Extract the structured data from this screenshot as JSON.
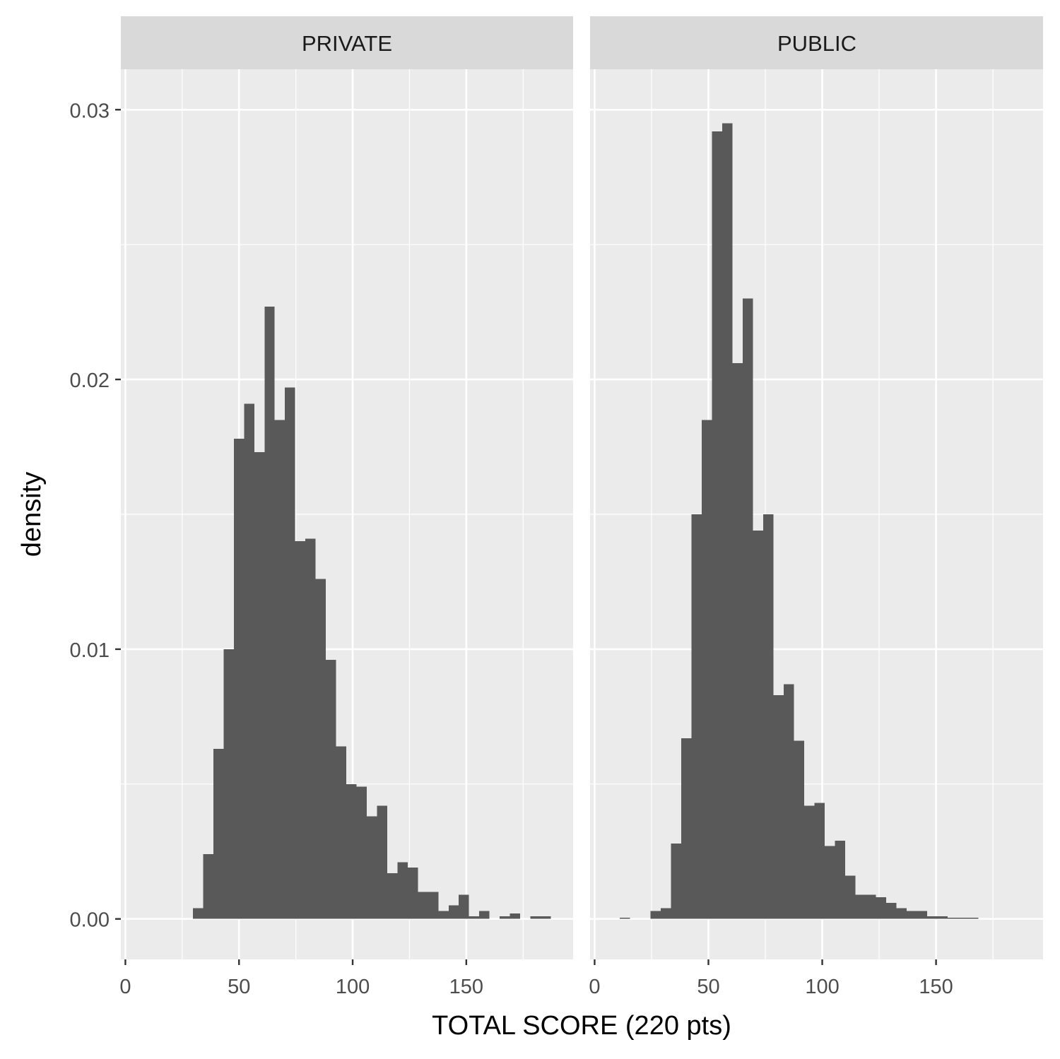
{
  "chart_data": {
    "type": "histogram",
    "xlabel": "TOTAL SCORE (220 pts)",
    "ylabel": "density",
    "xlim": [
      -2,
      197
    ],
    "ylim": [
      -0.0015,
      0.0315
    ],
    "bin_width": 4.5,
    "x_ticks": [
      0,
      50,
      100,
      150
    ],
    "x_tick_labels": [
      "0",
      "50",
      "100",
      "150"
    ],
    "y_ticks": [
      0,
      0.01,
      0.02,
      0.03
    ],
    "y_tick_labels": [
      "0.00",
      "0.01",
      "0.02",
      "0.03"
    ],
    "grid": true,
    "colors": {
      "bar": "#595959",
      "panel": "#ebebeb",
      "strip": "#d9d9d9",
      "grid": "#ffffff"
    },
    "panels": [
      {
        "label": "PRIVATE",
        "x_start": 29.7,
        "values": [
          0.0004,
          0.0024,
          0.0063,
          0.01,
          0.0178,
          0.0191,
          0.0173,
          0.0227,
          0.0185,
          0.0197,
          0.014,
          0.0141,
          0.0126,
          0.0096,
          0.0064,
          0.005,
          0.0049,
          0.0038,
          0.0042,
          0.0017,
          0.0021,
          0.0019,
          0.001,
          0.001,
          0.0003,
          0.0005,
          0.0009,
          0.0001,
          0.0003,
          0.0,
          0.0001,
          0.0002,
          0.0,
          0.0001,
          0.0001
        ]
      },
      {
        "label": "PUBLIC",
        "x_start": 6.6,
        "values": [
          0.0,
          5e-05,
          0.0,
          0.0,
          0.0003,
          0.0004,
          0.0028,
          0.0067,
          0.015,
          0.0185,
          0.0292,
          0.0295,
          0.0206,
          0.023,
          0.0144,
          0.015,
          0.0083,
          0.0087,
          0.0066,
          0.0042,
          0.0043,
          0.0027,
          0.0029,
          0.0016,
          0.0009,
          0.0009,
          0.0008,
          0.0006,
          0.0004,
          0.0003,
          0.0003,
          0.0001,
          0.0001,
          5e-05,
          5e-05,
          5e-05
        ]
      }
    ]
  }
}
